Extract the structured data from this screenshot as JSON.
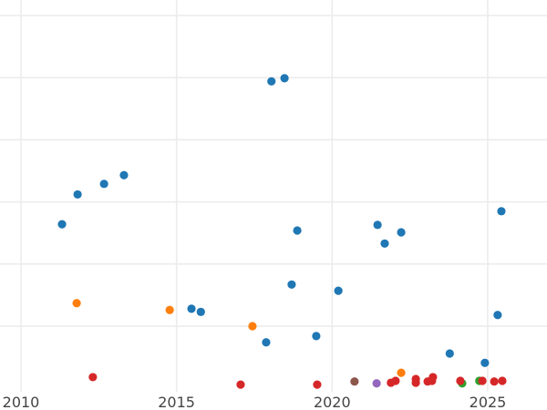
{
  "chart_data": {
    "type": "scatter",
    "title": "",
    "xlabel": "",
    "ylabel": "",
    "xlim": [
      2009.35,
      2026.9
    ],
    "ylim_grid_units": [
      -0.94,
      5.25
    ],
    "y_units_note": "y axis tick labels not visible; values expressed in gridline units (0 = gridline at bottom, 1 gridline spacing = 1 unit)",
    "x_ticks": [
      2010,
      2015,
      2020,
      2025
    ],
    "x_tick_labels": [
      "2010",
      "2015",
      "2020",
      "2025"
    ],
    "y_gridlines": [
      0,
      1,
      2,
      3,
      4,
      5
    ],
    "grid": true,
    "legend": null,
    "series": [
      {
        "name": "blue",
        "color": "#1f77b4",
        "points": [
          [
            2011.32,
            1.64
          ],
          [
            2011.82,
            2.12
          ],
          [
            2012.67,
            2.29
          ],
          [
            2013.31,
            2.43
          ],
          [
            2015.48,
            0.28
          ],
          [
            2015.78,
            0.23
          ],
          [
            2017.88,
            -0.26
          ],
          [
            2018.05,
            3.94
          ],
          [
            2018.47,
            3.99
          ],
          [
            2018.7,
            0.67
          ],
          [
            2018.88,
            1.54
          ],
          [
            2019.49,
            -0.16
          ],
          [
            2020.2,
            0.57
          ],
          [
            2021.46,
            1.63
          ],
          [
            2021.69,
            1.33
          ],
          [
            2022.22,
            1.51
          ],
          [
            2023.78,
            -0.44
          ],
          [
            2024.91,
            -0.59
          ],
          [
            2025.32,
            0.18
          ],
          [
            2025.44,
            1.85
          ]
        ]
      },
      {
        "name": "orange",
        "color": "#ff7f0e",
        "points": [
          [
            2011.79,
            0.37
          ],
          [
            2014.78,
            0.26
          ],
          [
            2017.44,
            0.0
          ],
          [
            2022.22,
            -0.75
          ]
        ]
      },
      {
        "name": "green",
        "color": "#2ca02c",
        "points": [
          [
            2024.18,
            -0.92
          ],
          [
            2024.73,
            -0.88
          ]
        ]
      },
      {
        "name": "red",
        "color": "#d62728",
        "points": [
          [
            2012.31,
            -0.82
          ],
          [
            2017.06,
            -0.94
          ],
          [
            2019.52,
            -0.94
          ],
          [
            2021.89,
            -0.91
          ],
          [
            2022.04,
            -0.88
          ],
          [
            2022.69,
            -0.85
          ],
          [
            2022.69,
            -0.91
          ],
          [
            2023.07,
            -0.89
          ],
          [
            2023.21,
            -0.88
          ],
          [
            2023.24,
            -0.82
          ],
          [
            2024.12,
            -0.88
          ],
          [
            2024.83,
            -0.88
          ],
          [
            2025.21,
            -0.89
          ],
          [
            2025.47,
            -0.88
          ]
        ]
      },
      {
        "name": "purple",
        "color": "#9467bd",
        "points": [
          [
            2021.43,
            -0.92
          ]
        ]
      },
      {
        "name": "brown",
        "color": "#8c564b",
        "points": [
          [
            2020.72,
            -0.89
          ]
        ]
      }
    ]
  },
  "axes": {
    "x_tick_labels": [
      "2010",
      "2015",
      "2020",
      "2025"
    ]
  }
}
